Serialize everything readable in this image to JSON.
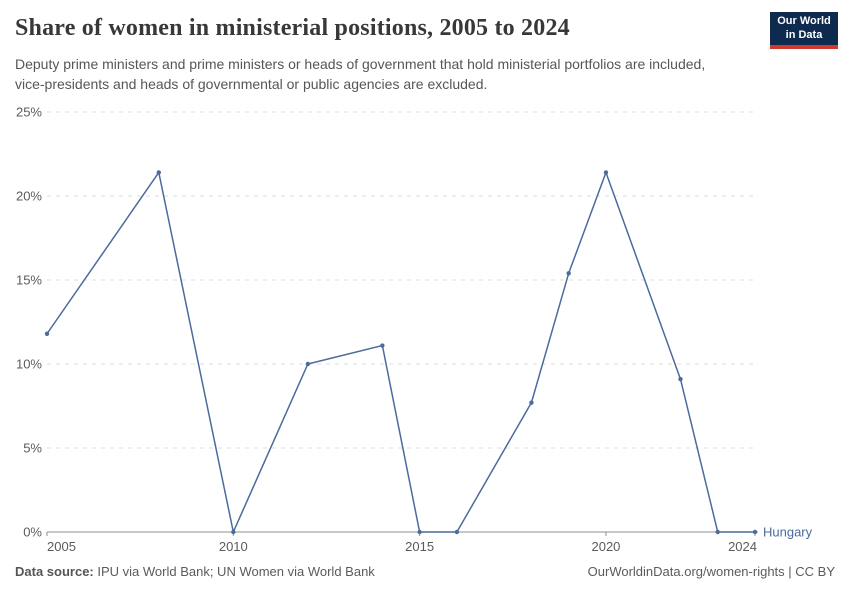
{
  "header": {
    "title": "Share of women in ministerial positions, 2005 to 2024",
    "subtitle": "Deputy prime ministers and prime ministers or heads of government that hold ministerial portfolios are included, vice-presidents and heads of governmental or public agencies are excluded.",
    "logo": {
      "line1": "Our World",
      "line2": "in Data"
    }
  },
  "footer": {
    "source_label": "Data source:",
    "source_text": " IPU via World Bank; UN Women via World Bank",
    "link": "OurWorldinData.org/women-rights",
    "separator": " | ",
    "license": "CC BY"
  },
  "chart_data": {
    "type": "line",
    "title": "Share of women in ministerial positions, 2005 to 2024",
    "series": [
      {
        "name": "Hungary",
        "x": [
          2005,
          2008,
          2010,
          2012,
          2014,
          2015,
          2016,
          2018,
          2019,
          2020,
          2022,
          2023,
          2024
        ],
        "values": [
          11.8,
          21.4,
          0,
          10,
          11.1,
          0,
          0,
          7.7,
          15.4,
          21.4,
          9.1,
          0,
          0
        ],
        "color": "#4C6A9C"
      }
    ],
    "xlabel": "",
    "ylabel": "",
    "xlim": [
      2005,
      2024
    ],
    "ylim": [
      0,
      25
    ],
    "x_ticks": [
      2005,
      2010,
      2015,
      2020,
      2024
    ],
    "y_ticks": [
      0,
      5,
      10,
      15,
      20,
      25
    ],
    "y_tick_suffix": "%",
    "grid": "horizontal-dashed",
    "legend_position": "end-of-line",
    "colors": {
      "grid": "#dcdcdc",
      "axis": "#8f8f8f",
      "tick_label": "#5b5b5b"
    }
  }
}
